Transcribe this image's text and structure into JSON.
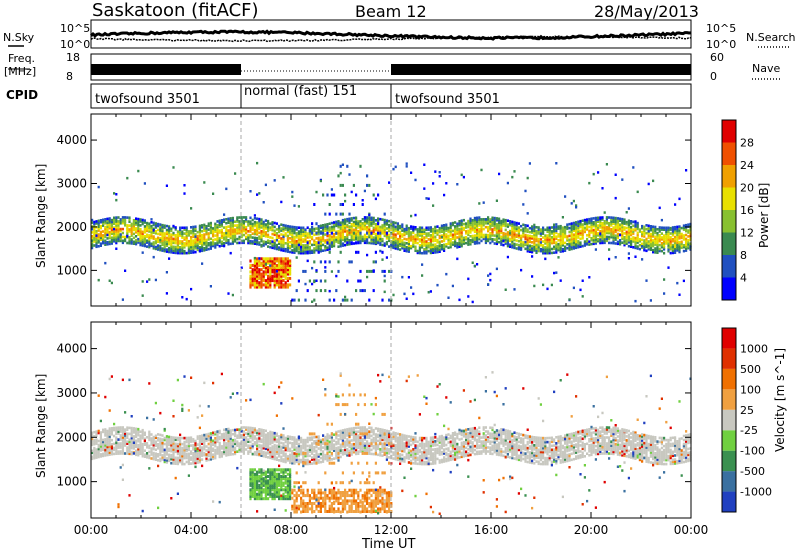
{
  "header": {
    "station": "Saskatoon (fitACF)",
    "beam": "Beam 12",
    "date": "28/May/2013"
  },
  "noise_panel": {
    "left_label": "N.Sky",
    "right_label": "N.Search",
    "left_ticks": [
      "10^5",
      "10^0"
    ],
    "right_ticks": [
      "10^5",
      "10^0"
    ]
  },
  "freq_panel": {
    "left_label_line1": "Freq.",
    "left_label_line2": "[MHz]",
    "right_label": "Nave",
    "left_ticks": [
      "18",
      "8"
    ],
    "right_ticks": [
      "60",
      "0"
    ]
  },
  "cpid_panel": {
    "label": "CPID",
    "modes": [
      {
        "name": "twofsound 3501",
        "start_hour": 0,
        "end_hour": 6
      },
      {
        "name": "normal (fast) 151",
        "start_hour": 6,
        "end_hour": 12
      },
      {
        "name": "twofsound 3501",
        "start_hour": 12,
        "end_hour": 24
      }
    ]
  },
  "chart_data": [
    {
      "type": "heatmap",
      "name": "Power",
      "ylabel": "Slant Range [km]",
      "xlabel": "Time UT",
      "xlim": [
        0,
        24
      ],
      "ylim": [
        180,
        4600
      ],
      "yticks": [
        "1000",
        "2000",
        "3000",
        "4000"
      ],
      "colorbar_label": "Power [dB]",
      "colorbar_ticks": [
        "28",
        "24",
        "20",
        "16",
        "12",
        "8",
        "4"
      ],
      "colorbar_colors": [
        "#0000ff",
        "#2050c0",
        "#3a8a50",
        "#88c030",
        "#e8e000",
        "#f0a000",
        "#f05000",
        "#e00000"
      ],
      "features": [
        {
          "desc": "main echo band",
          "hour_start": 0,
          "hour_end": 24,
          "range_km": [
            1500,
            2100
          ]
        },
        {
          "desc": "strong patch",
          "hour_start": 6.3,
          "hour_end": 8,
          "range_km": [
            700,
            1300
          ]
        },
        {
          "desc": "arc",
          "hour_start": 8,
          "hour_end": 12,
          "range_km": [
            300,
            3500
          ]
        }
      ]
    },
    {
      "type": "heatmap",
      "name": "Velocity",
      "ylabel": "Slant Range [km]",
      "xlabel": "Time UT",
      "xlim": [
        0,
        24
      ],
      "ylim": [
        180,
        4600
      ],
      "yticks": [
        "1000",
        "2000",
        "3000",
        "4000"
      ],
      "colorbar_label": "Velocity [m s^-1]",
      "colorbar_ticks": [
        "1000",
        "500",
        "100",
        "25",
        "-25",
        "-100",
        "-500",
        "-1000"
      ],
      "colorbar_colors": [
        "#2040c0",
        "#3a70a0",
        "#3a9050",
        "#70d040",
        "#c8c8c0",
        "#f0a040",
        "#f07000",
        "#e03000",
        "#e00000"
      ],
      "features": [
        {
          "desc": "ground scatter band",
          "hour_start": 0,
          "hour_end": 24,
          "range_km": [
            1500,
            2100
          ]
        },
        {
          "desc": "green patch",
          "hour_start": 6.3,
          "hour_end": 8,
          "range_km": [
            500,
            1300
          ]
        },
        {
          "desc": "orange arc",
          "hour_start": 8,
          "hour_end": 12,
          "range_km": [
            300,
            1300
          ]
        }
      ]
    }
  ],
  "x_axis": {
    "ticks": [
      "00:00",
      "04:00",
      "08:00",
      "12:00",
      "16:00",
      "20:00",
      "00:00"
    ],
    "label": "Time UT"
  }
}
